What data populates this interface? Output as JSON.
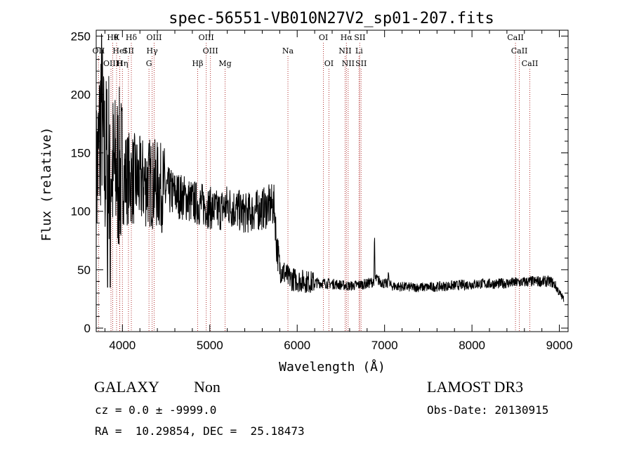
{
  "chart_data": {
    "type": "line",
    "title": "spec-56551-VB010N27V2_sp01-207.fits",
    "xlabel": "Wavelength (Å)",
    "ylabel": "Flux (relative)",
    "xlim": [
      3700,
      9100
    ],
    "ylim": [
      -3,
      255
    ],
    "xticks": [
      4000,
      5000,
      6000,
      7000,
      8000,
      9000
    ],
    "xtick_labels": [
      "4000",
      "5000",
      "6000",
      "7000",
      "8000",
      "9000"
    ],
    "yticks": [
      0,
      50,
      100,
      150,
      200,
      250
    ],
    "ytick_labels": [
      "0",
      "50",
      "100",
      "150",
      "200",
      "250"
    ],
    "line_color": "#000000",
    "marker_color": "#b03030",
    "spectrum": {
      "name": "flux",
      "x": [
        3700,
        3750,
        3800,
        3850,
        3900,
        3950,
        4000,
        4100,
        4200,
        4300,
        4400,
        4500,
        4600,
        4700,
        4800,
        4900,
        5000,
        5100,
        5200,
        5300,
        5400,
        5500,
        5600,
        5700,
        5740,
        5760,
        5800,
        5900,
        6000,
        6200,
        6400,
        6600,
        6800,
        6880,
        6900,
        7000,
        7050,
        7100,
        7300,
        7500,
        7700,
        7900,
        8100,
        8300,
        8500,
        8700,
        8800,
        8900,
        8950,
        9000,
        9050
      ],
      "values": [
        125,
        165,
        140,
        150,
        130,
        135,
        130,
        128,
        125,
        125,
        122,
        118,
        115,
        112,
        108,
        106,
        103,
        100,
        105,
        102,
        98,
        100,
        102,
        105,
        104,
        75,
        52,
        43,
        41,
        39,
        38,
        36,
        38,
        40,
        42,
        38,
        37,
        36,
        35,
        35,
        36,
        37,
        38,
        38,
        39,
        40,
        40,
        40,
        37,
        30,
        25
      ]
    },
    "line_markers": [
      {
        "label": "OII",
        "x": 3727,
        "row": 1
      },
      {
        "label": "OIII",
        "x": 3869,
        "row": 2
      },
      {
        "label": "Hθ",
        "x": 3889,
        "row": 0
      },
      {
        "label": "HeI",
        "x": 3970,
        "row": 1
      },
      {
        "label": "Hη",
        "x": 4000,
        "row": 2
      },
      {
        "label": "K",
        "x": 3933,
        "row": 0
      },
      {
        "label": "H",
        "x": 3968,
        "row": 2
      },
      {
        "label": "Hδ",
        "x": 4102,
        "row": 0
      },
      {
        "label": "SII",
        "x": 4069,
        "row": 1
      },
      {
        "label": "OIII",
        "x": 4363,
        "row": 0
      },
      {
        "label": "Hγ",
        "x": 4340,
        "row": 1
      },
      {
        "label": "G",
        "x": 4304,
        "row": 2
      },
      {
        "label": "Hβ",
        "x": 4861,
        "row": 2
      },
      {
        "label": "OIII",
        "x": 4959,
        "row": 0
      },
      {
        "label": "OIII",
        "x": 5007,
        "row": 1
      },
      {
        "label": "Mg",
        "x": 5175,
        "row": 2
      },
      {
        "label": "Na",
        "x": 5894,
        "row": 1
      },
      {
        "label": "OI",
        "x": 6300,
        "row": 0
      },
      {
        "label": "OI",
        "x": 6363,
        "row": 2
      },
      {
        "label": "NII",
        "x": 6548,
        "row": 1
      },
      {
        "label": "Hα",
        "x": 6563,
        "row": 0
      },
      {
        "label": "NII",
        "x": 6583,
        "row": 2
      },
      {
        "label": "SII",
        "x": 6716,
        "row": 0
      },
      {
        "label": "Li",
        "x": 6708,
        "row": 1
      },
      {
        "label": "SII",
        "x": 6731,
        "row": 2
      },
      {
        "label": "CaII",
        "x": 8498,
        "row": 0
      },
      {
        "label": "CaII",
        "x": 8542,
        "row": 1
      },
      {
        "label": "CaII",
        "x": 8662,
        "row": 2
      }
    ]
  },
  "footer": {
    "class_label": "GALAXY",
    "subclass_label": "Non",
    "survey_label": "LAMOST DR3",
    "cz_text": "cz = 0.0 ± -9999.0",
    "obs_date_text": "Obs-Date: 20130915",
    "coords_text": "RA =  10.29854, DEC =  25.18473"
  }
}
